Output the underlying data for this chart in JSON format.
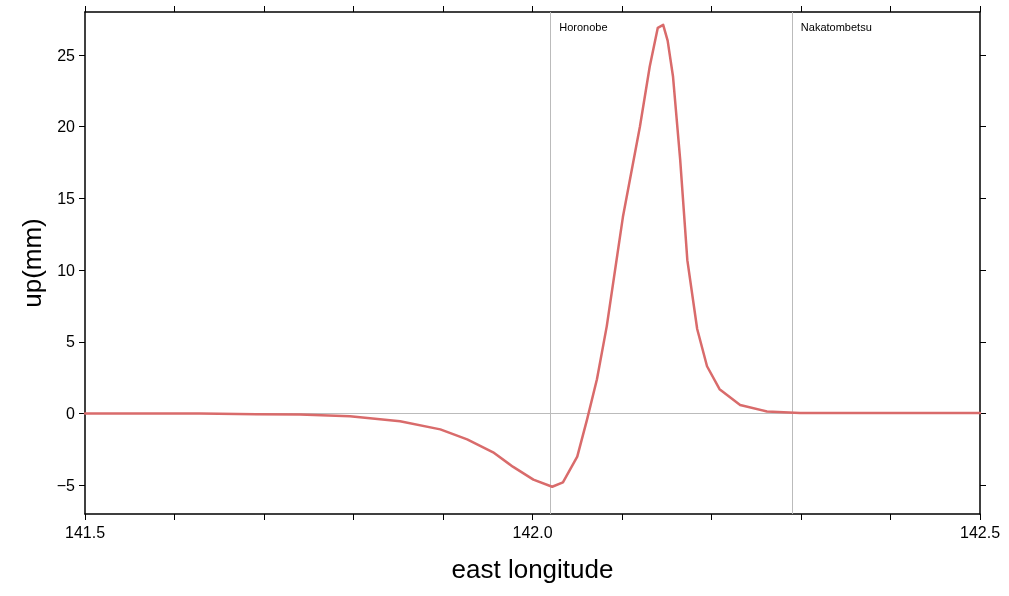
{
  "chart_data": {
    "type": "line",
    "xlabel": "east longitude",
    "ylabel": "up(mm)",
    "xlim": [
      141.5,
      142.5
    ],
    "ylim": [
      -7,
      28
    ],
    "xticks": [
      141.5,
      {
        "value": 141.6,
        "label": null
      },
      {
        "value": 141.7,
        "label": null
      },
      {
        "value": 141.8,
        "label": null
      },
      {
        "value": 141.9,
        "label": null
      },
      {
        "value": 142,
        "label": "142.0"
      },
      {
        "value": 142.1,
        "label": null
      },
      {
        "value": 142.2,
        "label": null
      },
      {
        "value": 142.3,
        "label": null
      },
      {
        "value": 142.4,
        "label": null
      },
      142.5
    ],
    "yticks": [
      {
        "value": -5,
        "label": "−5"
      },
      0,
      5,
      10,
      15,
      20,
      25
    ],
    "grid": false,
    "line_style": "solid",
    "ref_lines": [
      {
        "axis": "x",
        "value": 142.022,
        "label": "Horonobe",
        "color": "#bbbbbb"
      },
      {
        "axis": "x",
        "value": 142.292,
        "label": "Nakatombetsu",
        "color": "#bbbbbb"
      },
      {
        "axis": "y",
        "value": 0,
        "label": null,
        "color": "#bbbbbb"
      }
    ],
    "series": [
      {
        "color": "#d96b6b",
        "x": [
          141.5,
          141.628,
          141.74,
          141.796,
          141.852,
          141.897,
          141.927,
          141.956,
          141.978,
          142.001,
          142.022,
          142.034,
          142.05,
          142.061,
          142.072,
          142.083,
          142.101,
          142.12,
          142.131,
          142.14,
          142.146,
          142.151,
          142.157,
          142.165,
          142.173,
          142.184,
          142.195,
          142.209,
          142.232,
          142.262,
          142.299,
          142.411,
          142.5
        ],
        "values": [
          0,
          0,
          -0.07,
          -0.19,
          -0.53,
          -1.1,
          -1.8,
          -2.7,
          -3.7,
          -4.6,
          -5.1,
          -4.8,
          -3.0,
          -0.4,
          2.4,
          6.1,
          13.7,
          20.0,
          24.2,
          26.9,
          27.1,
          26.0,
          23.5,
          17.7,
          10.7,
          5.9,
          3.3,
          1.7,
          0.6,
          0.15,
          0.05,
          0.05,
          0.05
        ]
      }
    ]
  }
}
